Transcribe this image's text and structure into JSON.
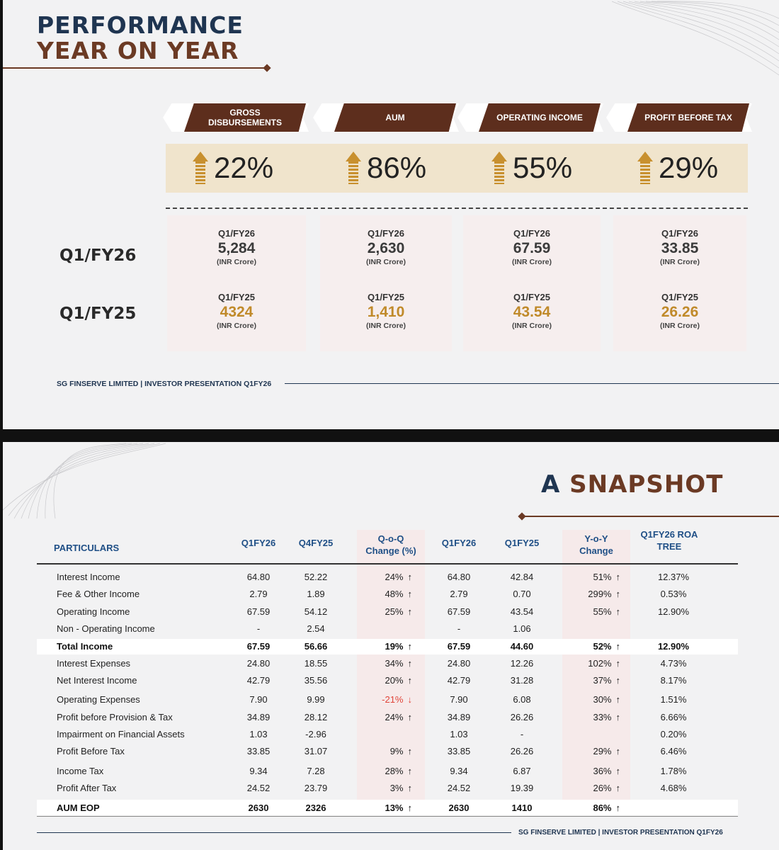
{
  "slide1": {
    "title_line1": "PERFORMANCE",
    "title_line2": "YEAR ON YEAR",
    "row_labels": [
      "Q1/FY26",
      "Q1/FY25"
    ],
    "footer": "SG FINSERVE LIMITED | INVESTOR PRESENTATION Q1FY26",
    "accent": "#5d2e1d",
    "gold": "#c08a2a",
    "metrics": [
      {
        "label": "GROSS DISBURSEMENTS",
        "growth": "22%",
        "cur_period": "Q1/FY26",
        "cur_value": "5,284",
        "cur_unit": "(INR Crore)",
        "prev_period": "Q1/FY25",
        "prev_value": "4324",
        "prev_unit": "(INR Crore)"
      },
      {
        "label": "AUM",
        "growth": "86%",
        "cur_period": "Q1/FY26",
        "cur_value": "2,630",
        "cur_unit": "(INR Crore)",
        "prev_period": "Q1/FY25",
        "prev_value": "1,410",
        "prev_unit": "(INR Crore)"
      },
      {
        "label": "OPERATING INCOME",
        "growth": "55%",
        "cur_period": "Q1/FY26",
        "cur_value": "67.59",
        "cur_unit": "(INR Crore)",
        "prev_period": "Q1/FY25",
        "prev_value": "43.54",
        "prev_unit": "(INR Crore)"
      },
      {
        "label": "PROFIT BEFORE TAX",
        "growth": "29%",
        "cur_period": "Q1/FY26",
        "cur_value": "33.85",
        "cur_unit": "(INR Crore)",
        "prev_period": "Q1/FY25",
        "prev_value": "26.26",
        "prev_unit": "(INR Crore)"
      }
    ]
  },
  "slide2": {
    "title_a": "A",
    "title_b": "SNAPSHOT",
    "headers": [
      "PARTICULARS",
      "Q1FY26",
      "Q4FY25",
      "Q-o-Q Change (%)",
      "Q1FY26",
      "Q1FY25",
      "Y-o-Y Change",
      "Q1FY26 ROA TREE"
    ],
    "footer": "SG FINSERVE LIMITED | INVESTOR PRESENTATION Q1FY26",
    "up_arrow": "↑",
    "down_arrow": "↓",
    "rows": [
      {
        "name": "Interest Income",
        "q1": "64.80",
        "q4": "52.22",
        "qoq": "24%",
        "qoq_dir": "up",
        "q1b": "64.80",
        "q1p": "42.84",
        "yoy": "51%",
        "yoy_dir": "up",
        "roa": "12.37%",
        "bold": false
      },
      {
        "name": "Fee & Other Income",
        "q1": "2.79",
        "q4": "1.89",
        "qoq": "48%",
        "qoq_dir": "up",
        "q1b": "2.79",
        "q1p": "0.70",
        "yoy": "299%",
        "yoy_dir": "up",
        "roa": "0.53%",
        "bold": false
      },
      {
        "name": "Operating Income",
        "q1": "67.59",
        "q4": "54.12",
        "qoq": "25%",
        "qoq_dir": "up",
        "q1b": "67.59",
        "q1p": "43.54",
        "yoy": "55%",
        "yoy_dir": "up",
        "roa": "12.90%",
        "bold": false
      },
      {
        "name": "Non - Operating Income",
        "q1": "-",
        "q4": "2.54",
        "qoq": "",
        "qoq_dir": "",
        "q1b": "-",
        "q1p": "1.06",
        "yoy": "",
        "yoy_dir": "",
        "roa": "",
        "bold": false
      },
      {
        "name": "Total Income",
        "q1": "67.59",
        "q4": "56.66",
        "qoq": "19%",
        "qoq_dir": "up",
        "q1b": "67.59",
        "q1p": "44.60",
        "yoy": "52%",
        "yoy_dir": "up",
        "roa": "12.90%",
        "bold": true
      },
      {
        "name": "Interest Expenses",
        "q1": "24.80",
        "q4": "18.55",
        "qoq": "34%",
        "qoq_dir": "up",
        "q1b": "24.80",
        "q1p": "12.26",
        "yoy": "102%",
        "yoy_dir": "up",
        "roa": "4.73%",
        "bold": false
      },
      {
        "name": "Net Interest Income",
        "q1": "42.79",
        "q4": "35.56",
        "qoq": "20%",
        "qoq_dir": "up",
        "q1b": "42.79",
        "q1p": "31.28",
        "yoy": "37%",
        "yoy_dir": "up",
        "roa": "8.17%",
        "bold": false
      },
      {
        "name": "Operating Expenses",
        "q1": "7.90",
        "q4": "9.99",
        "qoq": "-21%",
        "qoq_dir": "down",
        "q1b": "7.90",
        "q1p": "6.08",
        "yoy": "30%",
        "yoy_dir": "up",
        "roa": "1.51%",
        "bold": false
      },
      {
        "name": "Profit before Provision & Tax",
        "q1": "34.89",
        "q4": "28.12",
        "qoq": "24%",
        "qoq_dir": "up",
        "q1b": "34.89",
        "q1p": "26.26",
        "yoy": "33%",
        "yoy_dir": "up",
        "roa": "6.66%",
        "bold": false
      },
      {
        "name": "Impairment on Financial Assets",
        "q1": "1.03",
        "q4": "-2.96",
        "qoq": "",
        "qoq_dir": "",
        "q1b": "1.03",
        "q1p": "-",
        "yoy": "",
        "yoy_dir": "",
        "roa": "0.20%",
        "bold": false
      },
      {
        "name": "Profit Before Tax",
        "q1": "33.85",
        "q4": "31.07",
        "qoq": "9%",
        "qoq_dir": "up",
        "q1b": "33.85",
        "q1p": "26.26",
        "yoy": "29%",
        "yoy_dir": "up",
        "roa": "6.46%",
        "bold": false
      },
      {
        "name": "Income Tax",
        "q1": "9.34",
        "q4": "7.28",
        "qoq": "28%",
        "qoq_dir": "up",
        "q1b": "9.34",
        "q1p": "6.87",
        "yoy": "36%",
        "yoy_dir": "up",
        "roa": "1.78%",
        "bold": false
      },
      {
        "name": "Profit After Tax",
        "q1": "24.52",
        "q4": "23.79",
        "qoq": "3%",
        "qoq_dir": "up",
        "q1b": "24.52",
        "q1p": "19.39",
        "yoy": "26%",
        "yoy_dir": "up",
        "roa": "4.68%",
        "bold": false
      },
      {
        "name": "AUM EOP",
        "q1": "2630",
        "q4": "2326",
        "qoq": "13%",
        "qoq_dir": "up",
        "q1b": "2630",
        "q1p": "1410",
        "yoy": "86%",
        "yoy_dir": "up",
        "roa": "",
        "bold": true
      }
    ]
  }
}
